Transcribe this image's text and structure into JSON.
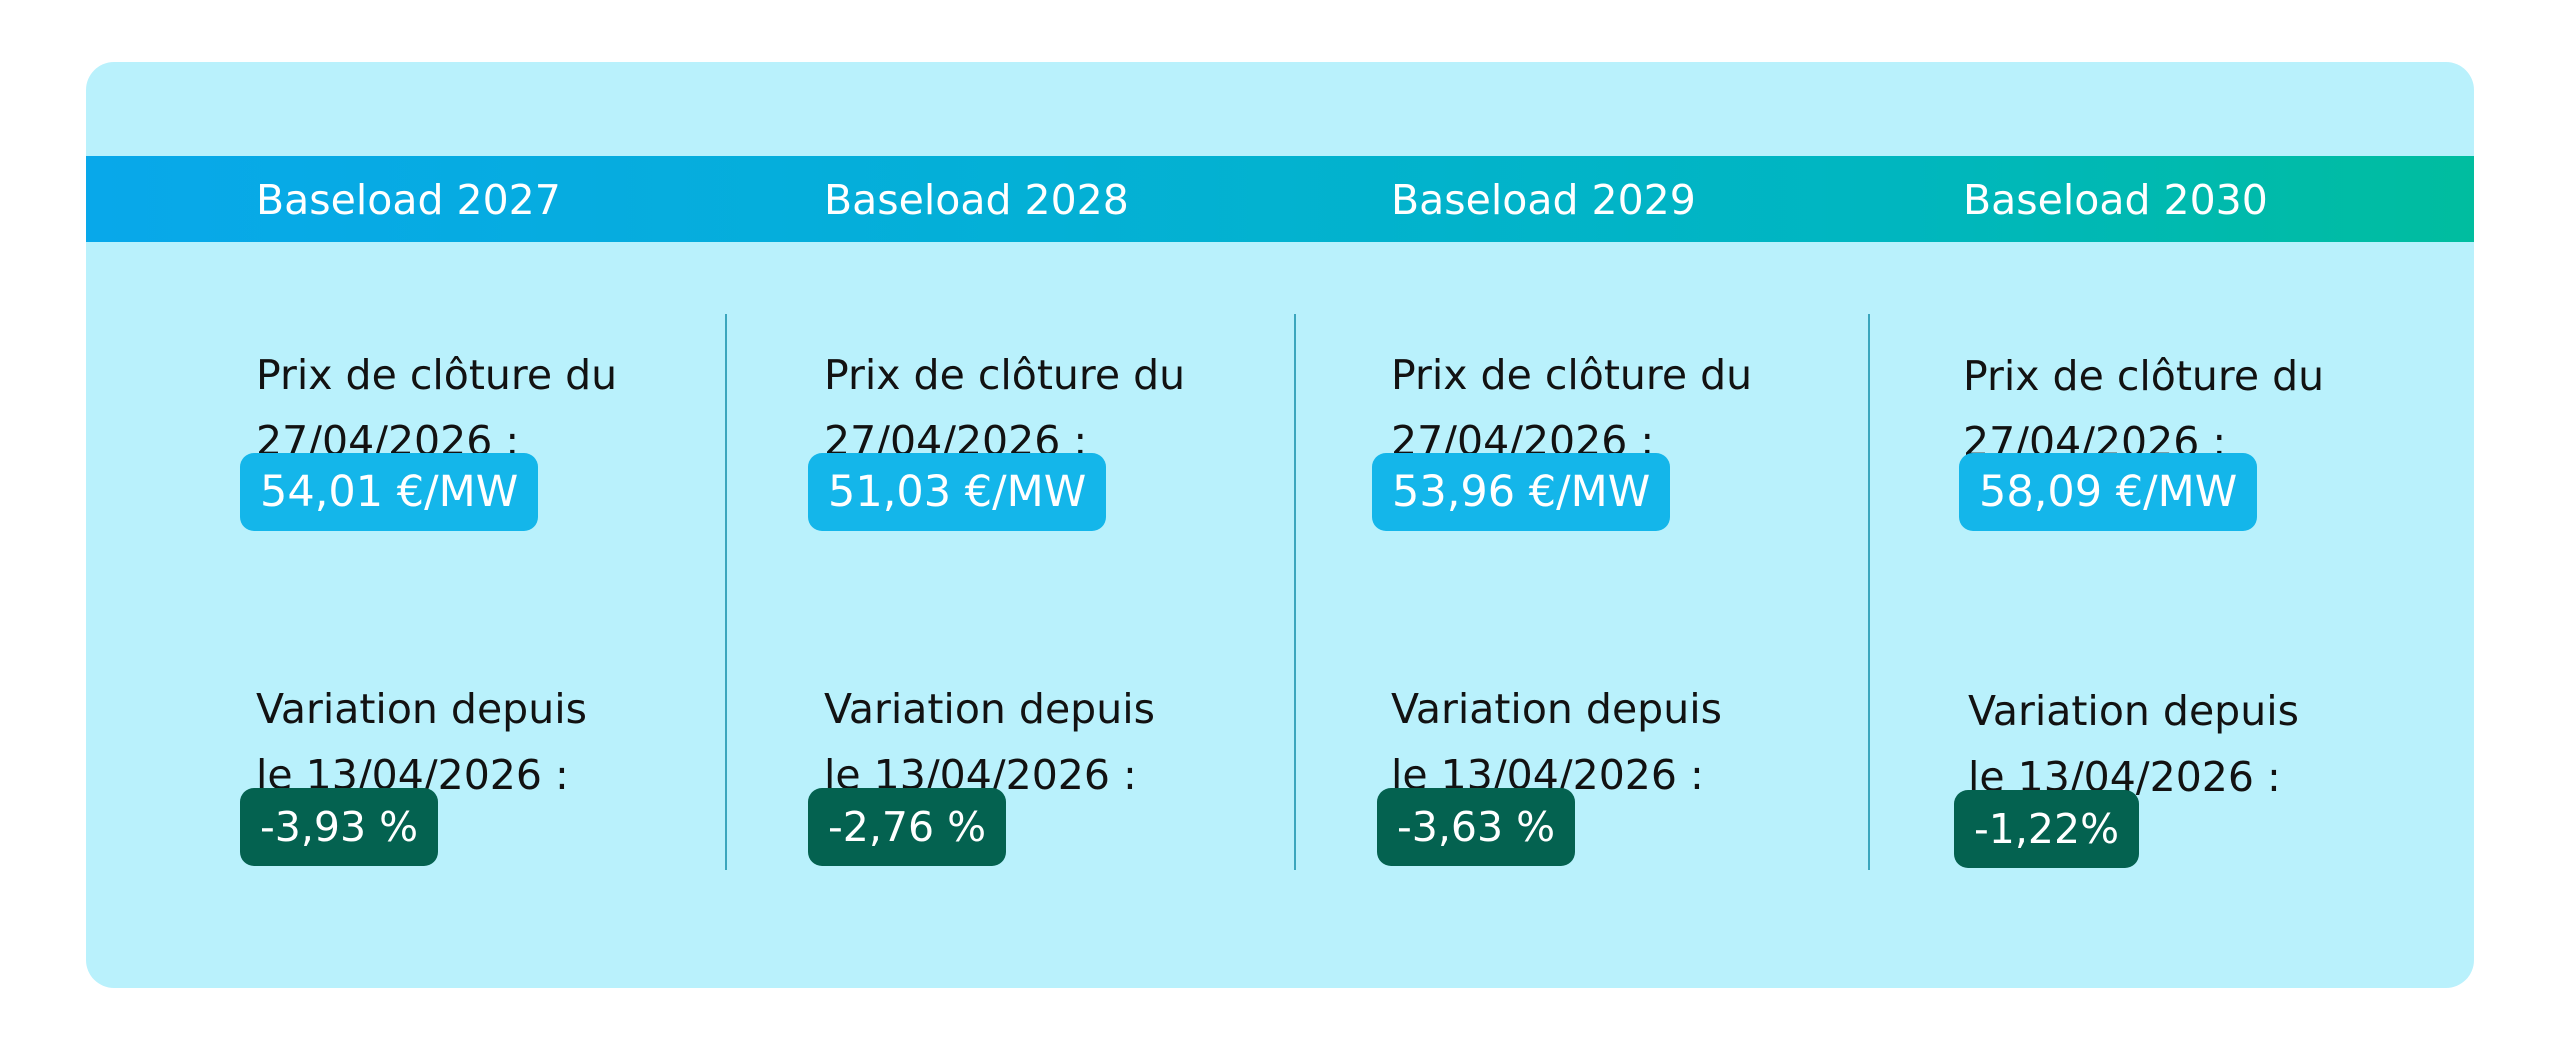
{
  "columns": [
    {
      "title": "Baseload 2027",
      "price_label_line1": "Prix de clôture du",
      "price_label_line2": "27/04/2026 :",
      "price_value": "54,01 €/MW",
      "variation_label_line1": "Variation depuis",
      "variation_label_line2": "le 13/04/2026 :",
      "variation_value": "-3,93 %"
    },
    {
      "title": "Baseload 2028",
      "price_label_line1": "Prix de clôture du",
      "price_label_line2": "27/04/2026 :",
      "price_value": "51,03 €/MW",
      "variation_label_line1": "Variation depuis",
      "variation_label_line2": "le 13/04/2026 :",
      "variation_value": "-2,76 %"
    },
    {
      "title": "Baseload 2029",
      "price_label_line1": "Prix de clôture du",
      "price_label_line2": "27/04/2026 :",
      "price_value": "53,96 €/MW",
      "variation_label_line1": "Variation depuis",
      "variation_label_line2": "le 13/04/2026 :",
      "variation_value": "-3,63 %"
    },
    {
      "title": "Baseload 2030",
      "price_label_line1": "Prix de clôture du",
      "price_label_line2": "27/04/2026 :",
      "price_value": "58,09 €/MW",
      "variation_label_line1": "Variation depuis",
      "variation_label_line2": "le 13/04/2026 :",
      "variation_value": "-1,22%"
    }
  ],
  "colors": {
    "panel_background": "#b9f1fc",
    "header_gradient_start": "#08a8ea",
    "header_gradient_end": "#00bd9f",
    "price_pill": "#14b6ea",
    "variation_pill": "#046250",
    "divider": "#3aa6bd"
  }
}
